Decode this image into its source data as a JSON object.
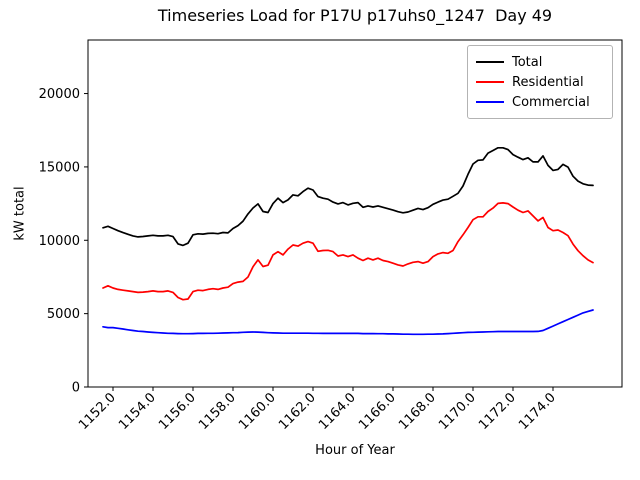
{
  "chart_data": {
    "type": "line",
    "title": "Timeseries Load for P17U p17uhs0_1247  Day 49",
    "xlabel": "Hour of Year",
    "ylabel": "kW total",
    "grid": false,
    "xlim": [
      1150.75,
      1177.45
    ],
    "ylim": [
      0,
      23650
    ],
    "x_ticks": {
      "values": [
        1152,
        1154,
        1156,
        1158,
        1160,
        1162,
        1164,
        1166,
        1168,
        1170,
        1172,
        1174
      ],
      "labels": [
        "1152.0",
        "1154.0",
        "1156.0",
        "1158.0",
        "1160.0",
        "1162.0",
        "1164.0",
        "1166.0",
        "1168.0",
        "1170.0",
        "1172.0",
        "1174.0"
      ],
      "rotation_deg": 45
    },
    "y_ticks": {
      "values": [
        0,
        5000,
        10000,
        15000,
        20000
      ],
      "labels": [
        "0",
        "5000",
        "10000",
        "15000",
        "20000"
      ]
    },
    "legend": {
      "position": "upper right",
      "entries": [
        {
          "label": "Total",
          "color": "#000000"
        },
        {
          "label": "Residential",
          "color": "#ff0000"
        },
        {
          "label": "Commercial",
          "color": "#0000ff"
        }
      ]
    },
    "x_start": 1151.5,
    "x_step": 0.25,
    "n_points": 99,
    "series": [
      {
        "name": "Total",
        "color": "#000000",
        "values": [
          10850,
          10950,
          10800,
          10650,
          10520,
          10410,
          10300,
          10230,
          10260,
          10300,
          10340,
          10300,
          10300,
          10340,
          10250,
          9750,
          9650,
          9800,
          10370,
          10440,
          10420,
          10470,
          10480,
          10450,
          10530,
          10500,
          10800,
          11000,
          11300,
          11800,
          12200,
          12480,
          11960,
          11890,
          12500,
          12870,
          12570,
          12750,
          13090,
          13030,
          13320,
          13550,
          13430,
          12980,
          12870,
          12800,
          12600,
          12480,
          12570,
          12410,
          12520,
          12570,
          12250,
          12340,
          12270,
          12340,
          12250,
          12150,
          12060,
          11950,
          11870,
          11930,
          12050,
          12170,
          12090,
          12220,
          12450,
          12600,
          12740,
          12800,
          13000,
          13200,
          13700,
          14500,
          15200,
          15450,
          15480,
          15940,
          16120,
          16300,
          16300,
          16180,
          15840,
          15660,
          15500,
          15620,
          15340,
          15340,
          15750,
          15100,
          14760,
          14830,
          15170,
          14990,
          14370,
          14030,
          13850,
          13760,
          13740
        ]
      },
      {
        "name": "Residential",
        "color": "#ff0000",
        "values": [
          6750,
          6900,
          6750,
          6650,
          6600,
          6550,
          6500,
          6450,
          6470,
          6500,
          6550,
          6500,
          6500,
          6550,
          6450,
          6100,
          5950,
          6000,
          6500,
          6600,
          6570,
          6650,
          6700,
          6650,
          6750,
          6800,
          7050,
          7150,
          7200,
          7500,
          8200,
          8660,
          8210,
          8300,
          9000,
          9220,
          9000,
          9400,
          9680,
          9600,
          9800,
          9910,
          9800,
          9250,
          9300,
          9320,
          9230,
          8930,
          9000,
          8890,
          9000,
          8780,
          8620,
          8780,
          8660,
          8780,
          8620,
          8550,
          8440,
          8320,
          8250,
          8390,
          8500,
          8550,
          8440,
          8550,
          8890,
          9070,
          9160,
          9110,
          9300,
          9910,
          10370,
          10870,
          11400,
          11600,
          11600,
          11960,
          12190,
          12510,
          12550,
          12500,
          12270,
          12050,
          11890,
          12000,
          11660,
          11320,
          11550,
          10870,
          10650,
          10700,
          10530,
          10310,
          9740,
          9290,
          8950,
          8660,
          8480
        ]
      },
      {
        "name": "Commercial",
        "color": "#0000ff",
        "values": [
          4100,
          4050,
          4050,
          4000,
          3950,
          3900,
          3850,
          3800,
          3780,
          3750,
          3720,
          3700,
          3680,
          3660,
          3650,
          3640,
          3630,
          3630,
          3640,
          3650,
          3650,
          3660,
          3660,
          3670,
          3680,
          3690,
          3700,
          3710,
          3730,
          3740,
          3750,
          3740,
          3720,
          3700,
          3690,
          3680,
          3670,
          3670,
          3670,
          3670,
          3670,
          3670,
          3660,
          3660,
          3650,
          3650,
          3650,
          3650,
          3650,
          3650,
          3650,
          3650,
          3640,
          3640,
          3640,
          3630,
          3630,
          3620,
          3620,
          3610,
          3600,
          3600,
          3590,
          3590,
          3590,
          3600,
          3600,
          3610,
          3620,
          3640,
          3660,
          3680,
          3700,
          3720,
          3730,
          3740,
          3750,
          3760,
          3770,
          3780,
          3780,
          3780,
          3780,
          3780,
          3780,
          3780,
          3780,
          3790,
          3850,
          4000,
          4150,
          4300,
          4450,
          4600,
          4750,
          4900,
          5050,
          5150,
          5250
        ]
      }
    ]
  }
}
